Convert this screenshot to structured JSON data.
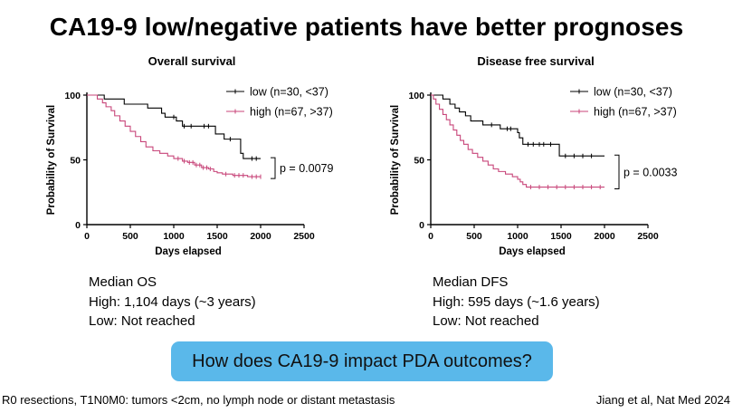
{
  "title": "CA19-9 low/negative patients have better prognoses",
  "summaries": {
    "os": {
      "heading": "Median OS",
      "high": "High: 1,104 days (~3 years)",
      "low": "Low: Not reached"
    },
    "dfs": {
      "heading": "Median DFS",
      "high": "High: 595 days (~1.6 years)",
      "low": "Low: Not reached"
    }
  },
  "question": "How does CA19-9 impact PDA outcomes?",
  "footer": {
    "left": "R0 resections, T1N0M0: tumors <2cm, no lymph node or distant metastasis",
    "right": "Jiang et al, Nat Med 2024"
  },
  "colors": {
    "low": "#000000",
    "high": "#c8467a",
    "button": "#5ab8ea"
  },
  "chart_data": [
    {
      "type": "line",
      "subtype": "kaplan-meier",
      "title": "Overall survival",
      "xlabel": "Days elapsed",
      "ylabel": "Probability of Survival",
      "xlim": [
        0,
        2500
      ],
      "ylim": [
        0,
        100
      ],
      "xticks": [
        0,
        500,
        1000,
        1500,
        2000,
        2500
      ],
      "yticks": [
        0,
        50,
        100
      ],
      "legend_position": "top-right",
      "p_value": "p = 0.0079",
      "series": [
        {
          "name": "low (n=30, <37)",
          "color": "#000000",
          "steps": [
            [
              0,
              100
            ],
            [
              160,
              100
            ],
            [
              200,
              97
            ],
            [
              380,
              97
            ],
            [
              430,
              93
            ],
            [
              640,
              93
            ],
            [
              700,
              90
            ],
            [
              820,
              90
            ],
            [
              860,
              86
            ],
            [
              900,
              83
            ],
            [
              1000,
              83
            ],
            [
              1030,
              80
            ],
            [
              1100,
              76
            ],
            [
              1450,
              76
            ],
            [
              1480,
              70
            ],
            [
              1560,
              70
            ],
            [
              1580,
              66
            ],
            [
              1750,
              66
            ],
            [
              1770,
              55
            ],
            [
              1800,
              51
            ],
            [
              2000,
              51
            ]
          ],
          "censors": [
            [
              1000,
              83
            ],
            [
              1120,
              76
            ],
            [
              1200,
              76
            ],
            [
              1350,
              76
            ],
            [
              1400,
              76
            ],
            [
              1650,
              66
            ],
            [
              1900,
              51
            ],
            [
              1950,
              51
            ]
          ]
        },
        {
          "name": "high (n=67, >37)",
          "color": "#c8467a",
          "steps": [
            [
              0,
              100
            ],
            [
              80,
              100
            ],
            [
              120,
              97
            ],
            [
              180,
              94
            ],
            [
              220,
              91
            ],
            [
              280,
              88
            ],
            [
              320,
              84
            ],
            [
              380,
              80
            ],
            [
              440,
              76
            ],
            [
              500,
              72
            ],
            [
              560,
              68
            ],
            [
              620,
              64
            ],
            [
              680,
              60
            ],
            [
              760,
              57
            ],
            [
              840,
              55
            ],
            [
              930,
              53
            ],
            [
              1000,
              51
            ],
            [
              1100,
              49
            ],
            [
              1160,
              48
            ],
            [
              1240,
              46
            ],
            [
              1320,
              44
            ],
            [
              1400,
              43
            ],
            [
              1460,
              41
            ],
            [
              1500,
              40
            ],
            [
              1560,
              39
            ],
            [
              1680,
              38
            ],
            [
              1850,
              37
            ],
            [
              2000,
              37
            ]
          ],
          "censors": [
            [
              1050,
              51
            ],
            [
              1120,
              49
            ],
            [
              1180,
              48
            ],
            [
              1220,
              48
            ],
            [
              1260,
              46
            ],
            [
              1300,
              46
            ],
            [
              1340,
              44
            ],
            [
              1380,
              44
            ],
            [
              1420,
              43
            ],
            [
              1600,
              39
            ],
            [
              1700,
              38
            ],
            [
              1750,
              38
            ],
            [
              1800,
              38
            ],
            [
              1900,
              37
            ],
            [
              1950,
              37
            ],
            [
              2000,
              37
            ]
          ]
        }
      ]
    },
    {
      "type": "line",
      "subtype": "kaplan-meier",
      "title": "Disease free survival",
      "xlabel": "Days elapsed",
      "ylabel": "Probability of Survival",
      "xlim": [
        0,
        2500
      ],
      "ylim": [
        0,
        100
      ],
      "xticks": [
        0,
        500,
        1000,
        1500,
        2000,
        2500
      ],
      "yticks": [
        0,
        50,
        100
      ],
      "legend_position": "top-right",
      "p_value": "p = 0.0033",
      "series": [
        {
          "name": "low (n=30, <37)",
          "color": "#000000",
          "steps": [
            [
              0,
              100
            ],
            [
              100,
              100
            ],
            [
              140,
              97
            ],
            [
              220,
              93
            ],
            [
              280,
              90
            ],
            [
              330,
              87
            ],
            [
              400,
              84
            ],
            [
              460,
              80
            ],
            [
              540,
              80
            ],
            [
              600,
              77
            ],
            [
              760,
              77
            ],
            [
              800,
              74
            ],
            [
              980,
              74
            ],
            [
              1000,
              71
            ],
            [
              1020,
              67
            ],
            [
              1060,
              62
            ],
            [
              1440,
              62
            ],
            [
              1480,
              53
            ],
            [
              2000,
              53
            ]
          ],
          "censors": [
            [
              700,
              77
            ],
            [
              880,
              74
            ],
            [
              920,
              74
            ],
            [
              1120,
              62
            ],
            [
              1180,
              62
            ],
            [
              1250,
              62
            ],
            [
              1300,
              62
            ],
            [
              1380,
              62
            ],
            [
              1550,
              53
            ],
            [
              1650,
              53
            ],
            [
              1750,
              53
            ],
            [
              1850,
              53
            ]
          ]
        },
        {
          "name": "high (n=67, >37)",
          "color": "#c8467a",
          "steps": [
            [
              0,
              100
            ],
            [
              30,
              97
            ],
            [
              60,
              93
            ],
            [
              100,
              89
            ],
            [
              140,
              85
            ],
            [
              180,
              81
            ],
            [
              220,
              77
            ],
            [
              260,
              73
            ],
            [
              300,
              69
            ],
            [
              340,
              65
            ],
            [
              380,
              62
            ],
            [
              430,
              58
            ],
            [
              480,
              55
            ],
            [
              540,
              52
            ],
            [
              600,
              49
            ],
            [
              660,
              46
            ],
            [
              720,
              43
            ],
            [
              780,
              41
            ],
            [
              860,
              39
            ],
            [
              940,
              37
            ],
            [
              1000,
              35
            ],
            [
              1030,
              33
            ],
            [
              1060,
              31
            ],
            [
              1100,
              29
            ],
            [
              2000,
              29
            ]
          ],
          "censors": [
            [
              1150,
              29
            ],
            [
              1250,
              29
            ],
            [
              1350,
              29
            ],
            [
              1450,
              29
            ],
            [
              1550,
              29
            ],
            [
              1650,
              29
            ],
            [
              1750,
              29
            ],
            [
              1850,
              29
            ],
            [
              1950,
              29
            ]
          ]
        }
      ]
    }
  ]
}
